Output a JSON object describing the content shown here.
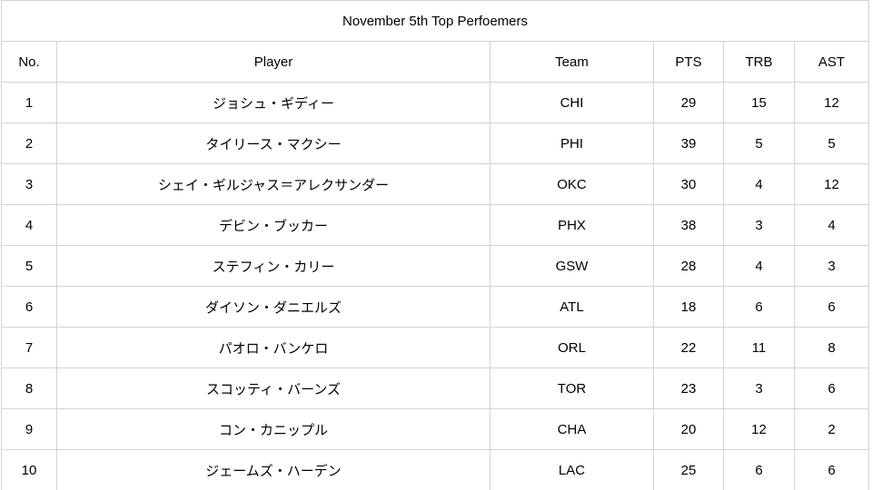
{
  "title": "November 5th Top Perfoemers",
  "colors": {
    "border": "#d3d3d3",
    "text": "#000000",
    "background": "#ffffff"
  },
  "table": {
    "headers": {
      "no": "No.",
      "player": "Player",
      "team": "Team",
      "pts": "PTS",
      "trb": "TRB",
      "ast": "AST"
    },
    "rows": [
      {
        "no": "1",
        "player": "ジョシュ・ギディー",
        "team": "CHI",
        "pts": "29",
        "trb": "15",
        "ast": "12"
      },
      {
        "no": "2",
        "player": "タイリース・マクシー",
        "team": "PHI",
        "pts": "39",
        "trb": "5",
        "ast": "5"
      },
      {
        "no": "3",
        "player": "シェイ・ギルジャス＝アレクサンダー",
        "team": "OKC",
        "pts": "30",
        "trb": "4",
        "ast": "12"
      },
      {
        "no": "4",
        "player": "デビン・ブッカー",
        "team": "PHX",
        "pts": "38",
        "trb": "3",
        "ast": "4"
      },
      {
        "no": "5",
        "player": "ステフィン・カリー",
        "team": "GSW",
        "pts": "28",
        "trb": "4",
        "ast": "3"
      },
      {
        "no": "6",
        "player": "ダイソン・ダニエルズ",
        "team": "ATL",
        "pts": "18",
        "trb": "6",
        "ast": "6"
      },
      {
        "no": "7",
        "player": "パオロ・バンケロ",
        "team": "ORL",
        "pts": "22",
        "trb": "11",
        "ast": "8"
      },
      {
        "no": "8",
        "player": "スコッティ・バーンズ",
        "team": "TOR",
        "pts": "23",
        "trb": "3",
        "ast": "6"
      },
      {
        "no": "9",
        "player": "コン・カニップル",
        "team": "CHA",
        "pts": "20",
        "trb": "12",
        "ast": "2"
      },
      {
        "no": "10",
        "player": "ジェームズ・ハーデン",
        "team": "LAC",
        "pts": "25",
        "trb": "6",
        "ast": "6"
      }
    ]
  }
}
